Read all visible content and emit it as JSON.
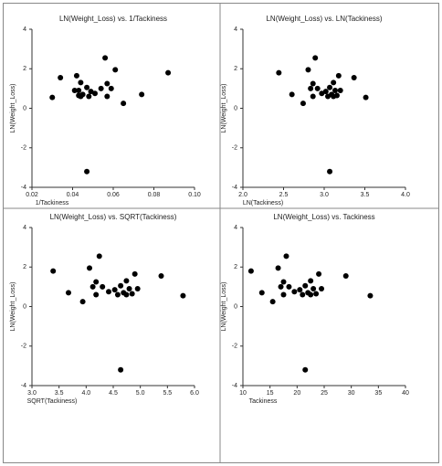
{
  "chart_data": [
    {
      "type": "scatter",
      "title": "LN(Weight_Loss) vs. 1/Tackiness",
      "x_label": "1/Tackiness",
      "y_label": "LN(Weight_Loss)",
      "color": "#000000",
      "x": [
        0.087,
        0.074,
        0.065,
        0.061,
        0.059,
        0.057,
        0.057,
        0.056,
        0.054,
        0.051,
        0.049,
        0.048,
        0.047,
        0.044,
        0.044,
        0.043,
        0.043,
        0.042,
        0.041,
        0.034,
        0.03,
        0.047,
        0.045
      ],
      "values": [
        1.8,
        0.7,
        0.25,
        1.95,
        1.0,
        0.6,
        1.25,
        2.55,
        1.0,
        0.75,
        0.85,
        0.6,
        1.05,
        1.3,
        0.6,
        0.9,
        0.65,
        1.65,
        0.9,
        1.55,
        0.55,
        -3.2,
        0.7
      ],
      "xlim": [
        0.02,
        0.1
      ],
      "xticks": [
        0.02,
        0.04,
        0.06,
        0.08,
        {
          "value": 0.1,
          "label": "0.10"
        }
      ],
      "ylim": [
        -4,
        4
      ],
      "yticks": [
        -4,
        -2,
        0,
        2,
        4
      ]
    },
    {
      "type": "scatter",
      "title": "LN(Weight_Loss) vs. LN(Tackiness)",
      "x_label": "LN(Tackiness)",
      "y_label": "LN(Weight_Loss)",
      "color": "#000000",
      "x": [
        2.442,
        2.603,
        2.741,
        2.803,
        2.833,
        2.862,
        2.862,
        2.89,
        2.918,
        2.97,
        3.02,
        3.045,
        3.068,
        3.114,
        3.114,
        3.135,
        3.157,
        3.178,
        3.199,
        3.367,
        3.512,
        3.068,
        3.091
      ],
      "values": [
        1.8,
        0.7,
        0.25,
        1.95,
        1.0,
        0.6,
        1.25,
        2.55,
        1.0,
        0.75,
        0.85,
        0.6,
        1.05,
        1.3,
        0.6,
        0.9,
        0.65,
        1.65,
        0.9,
        1.55,
        0.55,
        -3.2,
        0.7
      ],
      "xlim": [
        2,
        4
      ],
      "xticks": [
        {
          "value": 2,
          "label": "2.0"
        },
        2.5,
        {
          "value": 3,
          "label": "3.0"
        },
        3.5,
        {
          "value": 4,
          "label": "4.0"
        }
      ],
      "ylim": [
        -4,
        4
      ],
      "yticks": [
        -4,
        -2,
        0,
        2,
        4
      ]
    },
    {
      "type": "scatter",
      "title": "LN(Weight_Loss) vs. SQRT(Tackiness)",
      "x_label": "SQRT(Tackiness)",
      "y_label": "LN(Weight_Loss)",
      "color": "#000000",
      "x": [
        3.391,
        3.674,
        3.937,
        4.062,
        4.123,
        4.183,
        4.183,
        4.243,
        4.301,
        4.416,
        4.528,
        4.583,
        4.637,
        4.743,
        4.743,
        4.796,
        4.848,
        4.899,
        4.95,
        5.385,
        5.788,
        4.637,
        4.69
      ],
      "values": [
        1.8,
        0.7,
        0.25,
        1.95,
        1.0,
        0.6,
        1.25,
        2.55,
        1.0,
        0.75,
        0.85,
        0.6,
        1.05,
        1.3,
        0.6,
        0.9,
        0.65,
        1.65,
        0.9,
        1.55,
        0.55,
        -3.2,
        0.7
      ],
      "xlim": [
        3,
        6
      ],
      "xticks": [
        {
          "value": 3,
          "label": "3.0"
        },
        3.5,
        {
          "value": 4,
          "label": "4.0"
        },
        4.5,
        {
          "value": 5,
          "label": "5.0"
        },
        5.5,
        {
          "value": 6,
          "label": "6.0"
        }
      ],
      "ylim": [
        -4,
        4
      ],
      "yticks": [
        -4,
        -2,
        0,
        2,
        4
      ]
    },
    {
      "type": "scatter",
      "title": "LN(Weight_Loss) vs. Tackiness",
      "x_label": "Tackiness",
      "y_label": "LN(Weight_Loss)",
      "color": "#000000",
      "x": [
        11.5,
        13.5,
        15.5,
        16.5,
        17,
        17.5,
        17.5,
        18,
        18.5,
        19.5,
        20.5,
        21,
        21.5,
        22.5,
        22.5,
        23,
        23.5,
        24,
        24.5,
        29,
        33.5,
        21.5,
        22
      ],
      "values": [
        1.8,
        0.7,
        0.25,
        1.95,
        1.0,
        0.6,
        1.25,
        2.55,
        1.0,
        0.75,
        0.85,
        0.6,
        1.05,
        1.3,
        0.6,
        0.9,
        0.65,
        1.65,
        0.9,
        1.55,
        0.55,
        -3.2,
        0.7
      ],
      "xlim": [
        10,
        40
      ],
      "xticks": [
        10,
        15,
        20,
        25,
        30,
        35,
        40
      ],
      "ylim": [
        -4,
        4
      ],
      "yticks": [
        -4,
        -2,
        0,
        2,
        4
      ]
    }
  ]
}
